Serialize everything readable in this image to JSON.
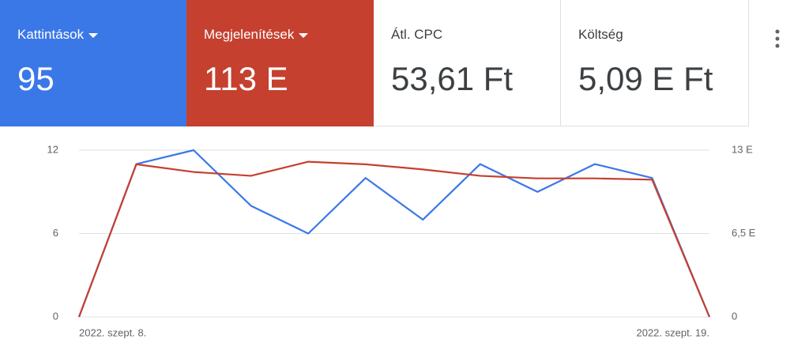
{
  "cards": [
    {
      "label": "Kattintások",
      "value": "95",
      "dropdown": true,
      "color": "#3b78e7"
    },
    {
      "label": "Megjelenítések",
      "value": "113 E",
      "dropdown": true,
      "color": "#c5402f"
    },
    {
      "label": "Átl. CPC",
      "value": "53,61 Ft",
      "dropdown": false,
      "color": "#ffffff"
    },
    {
      "label": "Költség",
      "value": "5,09 E Ft",
      "dropdown": false,
      "color": "#ffffff"
    }
  ],
  "chart_data": {
    "type": "line",
    "categories": [
      "2022. szept. 8.",
      null,
      null,
      null,
      null,
      null,
      null,
      null,
      null,
      null,
      null,
      "2022. szept. 19."
    ],
    "series": [
      {
        "color": "#3b78e7",
        "values": [
          0,
          11,
          12,
          8,
          6,
          10,
          7,
          11,
          9,
          11,
          10,
          0
        ]
      },
      {
        "color": "#c5402f",
        "axis": "y2",
        "values": [
          0,
          11900,
          11300,
          11000,
          12100,
          11900,
          11500,
          11000,
          10800,
          10800,
          10700,
          0
        ]
      }
    ],
    "ylim": [
      0,
      12
    ],
    "yticks": [
      0,
      6,
      12
    ],
    "y2lim": [
      0,
      13000
    ],
    "y2ticks": [
      0,
      {
        "value": 6500,
        "label": "6,5 E"
      },
      {
        "value": 13000,
        "label": "13 E"
      }
    ],
    "grid": true
  }
}
